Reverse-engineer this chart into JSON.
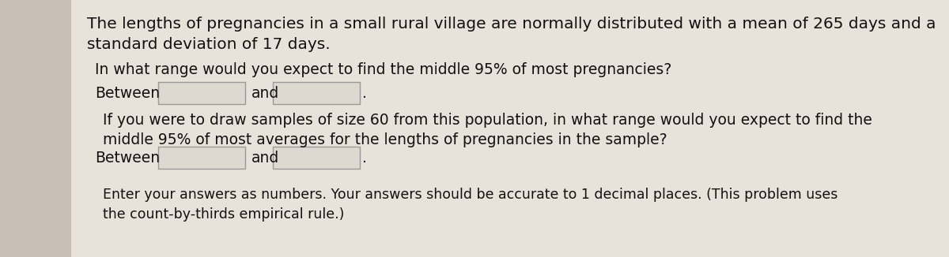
{
  "bg_color": "#c8bfb5",
  "content_bg": "#e8e2da",
  "text_color": "#111111",
  "line1": "The lengths of pregnancies in a small rural village are normally distributed with a mean of 265 days and a",
  "line2": "standard deviation of 17 days.",
  "q1_line": "In what range would you expect to find the middle 95% of most pregnancies?",
  "q1_label": "Between",
  "q1_and": "and",
  "q1_period": ".",
  "q2_line1": "If you were to draw samples of size 60 from this population, in what range would you expect to find the",
  "q2_line2": "middle 95% of most averages for the lengths of pregnancies in the sample?",
  "q2_label": "Between",
  "q2_and": "and",
  "q2_period": ".",
  "footer1": "Enter your answers as numbers. Your answers should be accurate to 1 decimal places. (This problem uses",
  "footer2": "the count-by-thirds empirical rule.)",
  "box_color": "#ddd8d0",
  "box_edge_color": "#999999",
  "font_size_main": 14.5,
  "font_size_q": 13.5,
  "font_size_footer": 12.5,
  "font_family": "DejaVu Sans"
}
